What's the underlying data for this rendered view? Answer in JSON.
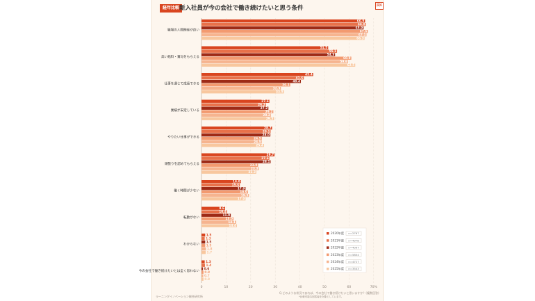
{
  "header": {
    "badge": "経年比較",
    "title": "新入社員が今の会社で働き続けたいと思う条件",
    "figure_tag": "図6"
  },
  "footer": {
    "source": "ラーニングイノベーション総合研究所",
    "question": "Q.どのような状況であれば、今の会社で働き続けたいと思いますか？(複数回答)",
    "note": "*比較可能な回答者を対象としています。"
  },
  "colors": {
    "2020": "#d9451f",
    "2021": "#e8714a",
    "2022": "#9e2a16",
    "2023": "#f39a70",
    "2024": "#f6b48f",
    "2025": "#f8c79e"
  },
  "chart_data": {
    "type": "bar",
    "orientation": "horizontal",
    "xlim": [
      0,
      70
    ],
    "xticks": [
      "0",
      "10",
      "20",
      "30",
      "40",
      "50",
      "60",
      "70%"
    ],
    "categories": [
      "職場の人間関係が良い",
      "高い給料・賞与をもらえる",
      "仕事を通じて成長できる",
      "業績が安定している",
      "やりたい仕事ができる",
      "頑張りを認めてもらえる",
      "働く時間が少ない",
      "転勤がない",
      "わからない",
      "今の会社で働き続けたいとは全く思わない"
    ],
    "series": [
      {
        "name": "2020年度",
        "n": "n=2767",
        "values": [
          66.5,
          51.5,
          45.4,
          27.6,
          28.7,
          29.7,
          16.0,
          9.6,
          1.5,
          1.3
        ]
      },
      {
        "name": "2021年度",
        "n": "n=4978",
        "values": [
          66.8,
          55.1,
          41.6,
          26.2,
          28.1,
          27.6,
          15.6,
          10.4,
          1.3,
          1.4
        ]
      },
      {
        "name": "2022年度",
        "n": "n=4097",
        "values": [
          65.9,
          54.3,
          40.4,
          27.2,
          28.0,
          28.1,
          17.9,
          11.9,
          1.5,
          0.6
        ]
      },
      {
        "name": "2023年度",
        "n": "n=5854",
        "values": [
          67.6,
          60.9,
          36.1,
          29.2,
          24.5,
          23.0,
          18.9,
          13.0,
          1.5,
          0.8
        ]
      },
      {
        "name": "2024年度",
        "n": "n=4727",
        "values": [
          67.1,
          59.6,
          32.3,
          28.2,
          24.5,
          23.3,
          19.3,
          14.1,
          1.8,
          0.7
        ]
      },
      {
        "name": "2025年度",
        "n": "n=3503",
        "values": [
          66.3,
          62.5,
          33.5,
          29.5,
          25.4,
          22.3,
          17.9,
          14.4,
          1.7,
          0.8
        ]
      }
    ]
  }
}
